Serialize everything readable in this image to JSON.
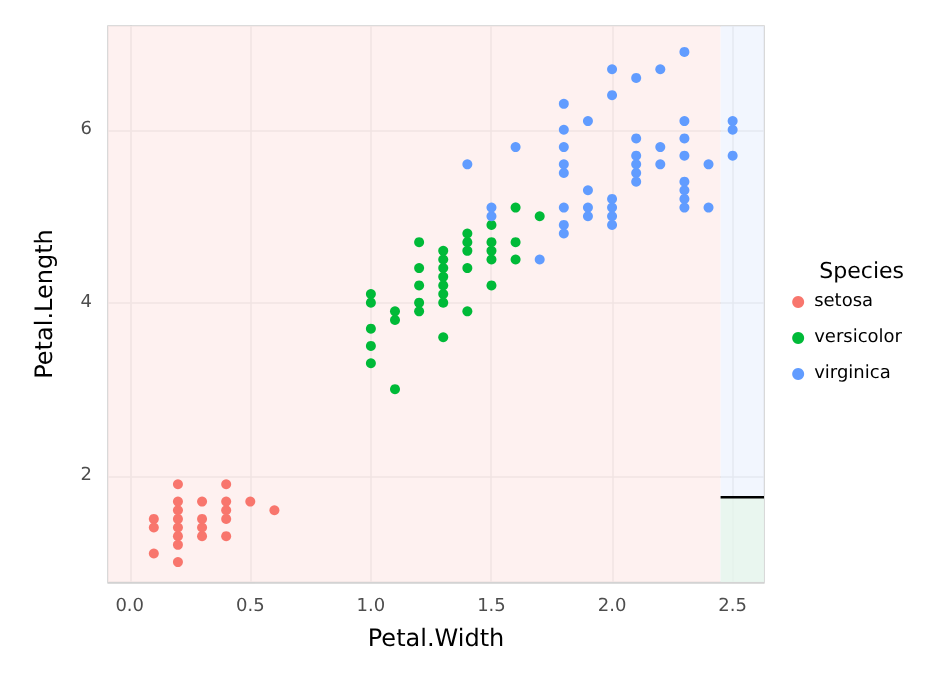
{
  "chart_data": {
    "type": "scatter",
    "xlabel": "Petal.Width",
    "ylabel": "Petal.Length",
    "legend_title": "Species",
    "legend": "right",
    "grid": true,
    "xlim": [
      -0.09,
      2.63
    ],
    "ylim": [
      0.77,
      7.2
    ],
    "xticks": [
      {
        "value": 0,
        "label": "0.0"
      },
      {
        "value": 0.5,
        "label": "0.5"
      },
      {
        "value": 1,
        "label": "1.0"
      },
      {
        "value": 1.5,
        "label": "1.5"
      },
      {
        "value": 2,
        "label": "2.0"
      },
      {
        "value": 2.5,
        "label": "2.5"
      }
    ],
    "yticks": [
      2,
      4,
      6
    ],
    "bands": [
      {
        "axis": "x",
        "from": -0.09,
        "to": 2.45,
        "color": "#fdeceb"
      },
      {
        "axis": "x",
        "from": 2.45,
        "to": 2.63,
        "color": "#eef3fd"
      }
    ],
    "series": [
      {
        "type": "area",
        "color": "#e6f6ea",
        "x": [
          2.45,
          2.63
        ],
        "values": [
          1.75,
          1.75
        ],
        "line_style": "solid"
      },
      {
        "name": "setosa",
        "color": "#f8766d",
        "marker": "circle",
        "x": [
          0.2,
          0.2,
          0.2,
          0.2,
          0.2,
          0.2,
          0.2,
          0.2,
          0.4,
          0.4,
          0.4,
          0.4,
          0.4,
          0.3,
          0.3,
          0.3,
          0.3,
          0.1,
          0.1,
          0.1,
          0.5,
          0.6
        ],
        "values": [
          1.4,
          1.3,
          1.5,
          1.7,
          1.6,
          1.2,
          1.0,
          1.9,
          1.7,
          1.5,
          1.3,
          1.6,
          1.9,
          1.4,
          1.7,
          1.5,
          1.3,
          1.5,
          1.4,
          1.1,
          1.7,
          1.6
        ]
      },
      {
        "name": "versicolor",
        "color": "#00ba38",
        "marker": "circle",
        "x": [
          1.4,
          1.4,
          1.4,
          1.4,
          1.4,
          1.5,
          1.5,
          1.5,
          1.5,
          1.5,
          1.3,
          1.3,
          1.3,
          1.3,
          1.3,
          1.3,
          1.3,
          1.3,
          1.6,
          1.6,
          1.6,
          1.0,
          1.0,
          1.0,
          1.0,
          1.0,
          1.1,
          1.1,
          1.1,
          1.2,
          1.2,
          1.2,
          1.2,
          1.2,
          1.7
        ],
        "values": [
          4.7,
          3.9,
          4.4,
          4.8,
          4.6,
          4.5,
          4.9,
          4.6,
          4.2,
          4.7,
          4.0,
          4.5,
          4.6,
          3.6,
          4.3,
          4.4,
          4.1,
          4.2,
          4.7,
          5.1,
          4.5,
          3.3,
          3.5,
          4.0,
          4.1,
          3.7,
          3.9,
          3.8,
          3.0,
          4.7,
          3.9,
          4.4,
          4.0,
          4.2,
          5.0
        ]
      },
      {
        "name": "virginica",
        "color": "#619cff",
        "marker": "circle",
        "x": [
          2.5,
          2.5,
          2.5,
          1.9,
          1.9,
          1.9,
          1.9,
          2.1,
          2.1,
          2.1,
          2.1,
          2.1,
          2.1,
          1.8,
          1.8,
          1.8,
          1.8,
          1.8,
          1.8,
          1.8,
          1.8,
          2.2,
          2.2,
          2.2,
          1.7,
          2.0,
          2.0,
          2.0,
          2.0,
          2.0,
          2.0,
          2.4,
          2.4,
          2.3,
          2.3,
          2.3,
          2.3,
          2.3,
          2.3,
          2.3,
          2.3,
          1.5,
          1.5,
          1.6,
          1.4
        ],
        "values": [
          6.0,
          6.1,
          5.7,
          5.1,
          5.3,
          6.1,
          5.0,
          5.9,
          6.6,
          5.5,
          5.7,
          5.6,
          5.4,
          5.6,
          5.8,
          6.3,
          5.5,
          4.9,
          6.0,
          4.8,
          5.1,
          5.8,
          6.7,
          5.6,
          4.5,
          5.1,
          5.0,
          4.9,
          6.7,
          6.4,
          5.2,
          5.1,
          5.6,
          5.3,
          6.9,
          5.7,
          6.1,
          5.1,
          5.9,
          5.2,
          5.4,
          5.0,
          5.1,
          5.8,
          5.6
        ]
      }
    ]
  }
}
